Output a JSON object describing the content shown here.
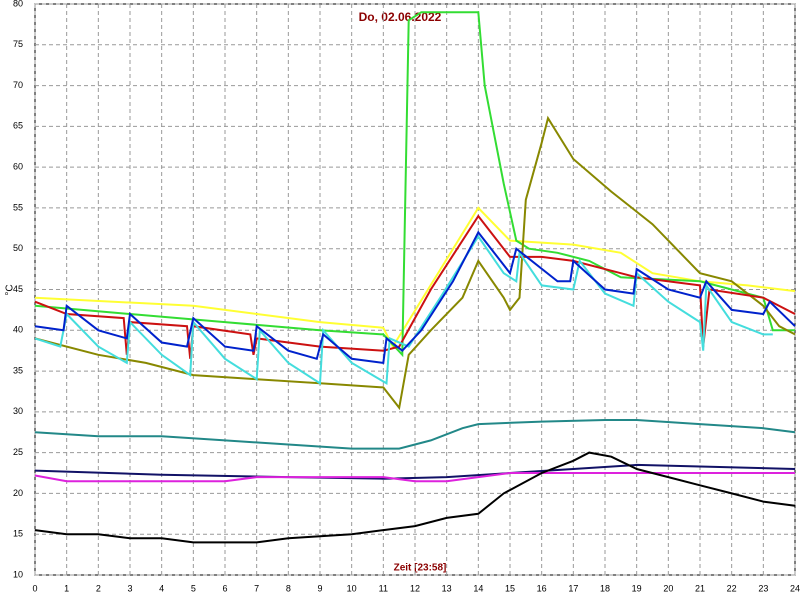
{
  "chart_data": {
    "type": "line",
    "title": "Do, 02.06.2022",
    "x_label": "Zeit [23:58]",
    "y_label": "°C",
    "xlim": [
      0,
      24
    ],
    "xticks": [
      0,
      1,
      2,
      3,
      4,
      5,
      6,
      7,
      8,
      9,
      10,
      11,
      12,
      13,
      14,
      15,
      16,
      17,
      18,
      19,
      20,
      21,
      22,
      23,
      24
    ],
    "ylim": [
      10,
      80
    ],
    "yticks": [
      10,
      15,
      20,
      25,
      30,
      35,
      40,
      45,
      50,
      55,
      60,
      65,
      70,
      75,
      80
    ],
    "grid": true,
    "series": [
      {
        "color": "#ffff33",
        "x": [
          0,
          5,
          9,
          11,
          11.3,
          14,
          15,
          17,
          18.5,
          19.5,
          21,
          22.5,
          24
        ],
        "values": [
          44,
          43,
          41,
          40.3,
          38,
          55,
          51,
          50.5,
          49.5,
          47,
          46,
          45.5,
          44.8
        ]
      },
      {
        "color": "#33dd33",
        "x": [
          0,
          3,
          6,
          9,
          11,
          11.6,
          11.8,
          12.2,
          13.2,
          14,
          14.2,
          14.8,
          15.2,
          15.6,
          16.5,
          17.5,
          18.5,
          21,
          22,
          23,
          23.3,
          24
        ],
        "values": [
          43,
          42,
          41,
          40,
          39.5,
          37,
          78,
          79,
          79,
          79,
          70,
          58,
          51,
          50,
          49.5,
          48.5,
          46.5,
          46,
          45,
          44,
          40,
          40
        ]
      },
      {
        "color": "#888800",
        "x": [
          0,
          2,
          3.5,
          5,
          7,
          9,
          11,
          11.5,
          11.8,
          12.5,
          13.5,
          14,
          14.8,
          15,
          15.3,
          15.5,
          16,
          16.2,
          17,
          18.2,
          19.5,
          20.5,
          21,
          22,
          23,
          23.5,
          24
        ],
        "values": [
          39,
          37,
          36,
          34.5,
          34,
          33.5,
          33,
          30.5,
          37,
          40,
          44,
          48.5,
          44,
          42.5,
          44,
          56,
          63,
          66,
          61,
          57,
          53,
          49,
          47,
          46,
          43,
          40.5,
          39.5
        ]
      },
      {
        "color": "#cc1111",
        "x": [
          0,
          1,
          2.8,
          2.9,
          3,
          4.8,
          4.9,
          5,
          6.8,
          6.9,
          7,
          9,
          11,
          11.5,
          12.5,
          14,
          15,
          16,
          17,
          18.5,
          19,
          21,
          21.1,
          21.3,
          23,
          24
        ],
        "values": [
          43.5,
          42,
          41.5,
          37,
          41,
          40.5,
          36.5,
          40.5,
          39.5,
          37,
          39,
          38,
          37.5,
          38,
          45,
          54,
          49,
          49,
          48.5,
          47,
          46.5,
          45.5,
          38,
          45,
          44,
          42
        ]
      },
      {
        "color": "#44dddd",
        "x": [
          0,
          0.8,
          1,
          2,
          2.9,
          3,
          4,
          4.9,
          5,
          6,
          7,
          7.1,
          8,
          9,
          9.1,
          10,
          11.1,
          11.2,
          11.8,
          12.8,
          14,
          14.8,
          15.2,
          15.3,
          16,
          17,
          17.2,
          18,
          18.9,
          19,
          20,
          21,
          21.1,
          21.2,
          22,
          23,
          23.3
        ],
        "values": [
          39,
          38,
          42,
          38,
          36,
          41,
          37,
          34.5,
          41,
          36.5,
          34,
          40,
          36,
          33.5,
          40,
          36,
          33.5,
          39,
          38,
          44,
          51.5,
          47,
          46,
          49.5,
          45.5,
          45,
          48.5,
          44.5,
          43,
          47,
          43.5,
          41,
          37.5,
          45.5,
          41,
          39.5,
          39.5
        ]
      },
      {
        "color": "#0022cc",
        "x": [
          0,
          0.9,
          1,
          2,
          2.9,
          3,
          4,
          4.8,
          5,
          6,
          6.9,
          7,
          8,
          8.9,
          9.1,
          10,
          11,
          11.1,
          11.6,
          12.2,
          13.2,
          14,
          14.8,
          15,
          15.2,
          16.5,
          16.9,
          17,
          18,
          18.9,
          19,
          20,
          21,
          21.2,
          22,
          23,
          23.2,
          24
        ],
        "values": [
          40.5,
          40,
          43,
          40,
          39,
          42,
          38.5,
          38,
          41.5,
          38,
          37.5,
          40.5,
          37.5,
          36.5,
          39.5,
          36.5,
          36,
          39,
          37.5,
          40,
          46,
          52,
          48,
          47,
          50,
          46,
          46,
          48.5,
          45,
          44.5,
          47.5,
          45,
          44,
          46,
          42.5,
          42,
          43.5,
          40.5
        ]
      },
      {
        "color": "#228888",
        "x": [
          0,
          2,
          4,
          6,
          8,
          10,
          11.5,
          12.5,
          13.5,
          14,
          16,
          18,
          19,
          21,
          23,
          24
        ],
        "values": [
          27.5,
          27,
          27,
          26.5,
          26,
          25.5,
          25.5,
          26.5,
          28,
          28.5,
          28.8,
          29,
          29,
          28.5,
          28,
          27.5
        ]
      },
      {
        "color": "#111166",
        "x": [
          0,
          4,
          8,
          11,
          13,
          15,
          17,
          19,
          21,
          24
        ],
        "values": [
          22.8,
          22.3,
          22,
          21.8,
          22,
          22.5,
          23,
          23.5,
          23.3,
          23
        ]
      },
      {
        "color": "#dd22dd",
        "x": [
          0,
          1,
          6,
          7,
          11,
          12,
          13,
          14,
          15,
          18,
          24
        ],
        "values": [
          22.2,
          21.5,
          21.5,
          22,
          22,
          21.5,
          21.5,
          22,
          22.5,
          22.5,
          22.5
        ]
      },
      {
        "color": "#000000",
        "x": [
          0,
          1,
          2,
          3,
          4,
          5,
          7,
          8,
          10,
          11,
          12,
          13,
          14,
          14.8,
          16,
          17,
          17.5,
          18.2,
          19,
          20,
          21,
          22,
          23,
          24
        ],
        "values": [
          15.5,
          15,
          15,
          14.5,
          14.5,
          14,
          14,
          14.5,
          15,
          15.5,
          16,
          17,
          17.5,
          20,
          22.5,
          24,
          25,
          24.5,
          23,
          22,
          21,
          20,
          19,
          18.5
        ]
      }
    ]
  }
}
